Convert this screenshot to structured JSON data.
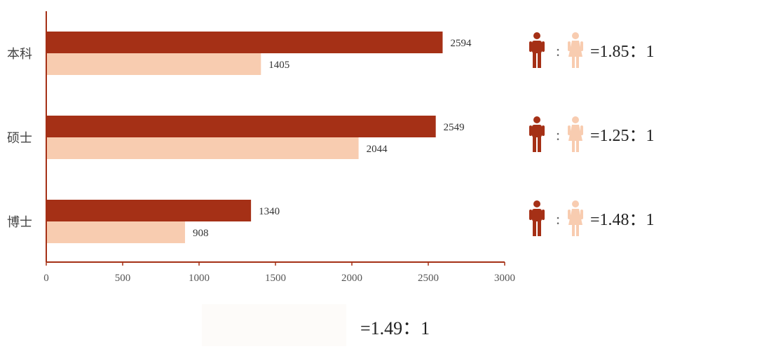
{
  "chart_data": {
    "type": "bar",
    "orientation": "horizontal",
    "categories": [
      "本科",
      "硕士",
      "博士"
    ],
    "series": [
      {
        "values": [
          2594,
          2549,
          1340
        ],
        "color": "#a53016"
      },
      {
        "values": [
          1405,
          2044,
          908
        ],
        "color": "#f8ccb0"
      }
    ],
    "xlim": [
      0,
      3000
    ],
    "xticks": [
      "0",
      "500",
      "1000",
      "1500",
      "2000",
      "2500",
      "3000"
    ],
    "grid": false,
    "ratios": [
      "=1.85：1",
      "=1.25：1",
      "=1.48：1"
    ],
    "ratio_separator": ":",
    "ratio_icons": [
      "male-icon",
      "female-icon"
    ]
  },
  "overall_ratio": "=1.49：1",
  "colors": {
    "male": "#a53016",
    "female": "#f8ccb0",
    "axis": "#a53016"
  }
}
